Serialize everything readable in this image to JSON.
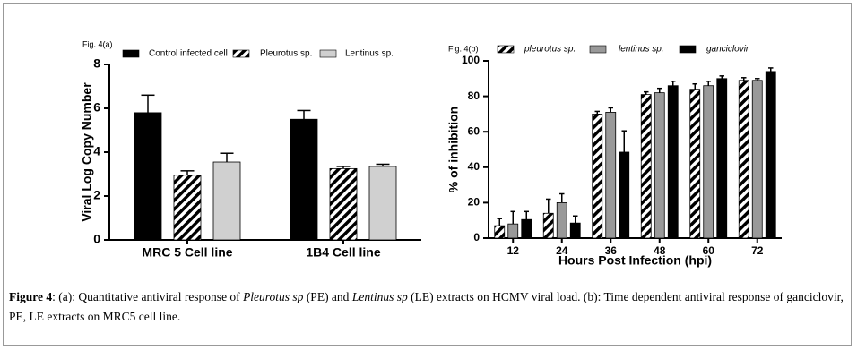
{
  "chart_data": [
    {
      "type": "bar",
      "title": "Fig. 4(a)",
      "ylabel": "Viral Log Copy Number",
      "categories": [
        "MRC 5 Cell line",
        "1B4 Cell line"
      ],
      "ylim": [
        0,
        8
      ],
      "yticks": [
        0,
        2,
        4,
        6,
        8
      ],
      "legend": "top",
      "legend_italic": false,
      "series": [
        {
          "name": "Control infected cell",
          "color": "#000000",
          "fill": "solid",
          "values": [
            5.8,
            5.5
          ],
          "errors": [
            0.8,
            0.4
          ]
        },
        {
          "name": "Pleurotus sp.",
          "color": "#000000",
          "fill": "hatch",
          "values": [
            2.95,
            3.25
          ],
          "errors": [
            0.2,
            0.1
          ]
        },
        {
          "name": "Lentinus sp.",
          "color": "#d0d0d0",
          "fill": "solid",
          "values": [
            3.55,
            3.35
          ],
          "errors": [
            0.4,
            0.1
          ]
        }
      ]
    },
    {
      "type": "bar",
      "title": "Fig. 4(b)",
      "ylabel": "% of inhibition",
      "xlabel": "Hours Post Infection (hpi)",
      "categories": [
        "12",
        "24",
        "36",
        "48",
        "60",
        "72"
      ],
      "ylim": [
        0,
        100
      ],
      "yticks": [
        0,
        20,
        40,
        60,
        80,
        100
      ],
      "legend": "top",
      "legend_italic": true,
      "series": [
        {
          "name": "pleurotus sp.",
          "color": "#000000",
          "fill": "hatch",
          "values": [
            7,
            14,
            70,
            81,
            84,
            89
          ],
          "errors": [
            4,
            8,
            1.5,
            1.5,
            3,
            1.5
          ]
        },
        {
          "name": "lentinus sp.",
          "color": "#999999",
          "fill": "solid",
          "values": [
            8,
            20,
            71,
            82,
            86,
            89
          ],
          "errors": [
            7,
            5,
            2.5,
            2.5,
            2.5,
            1
          ]
        },
        {
          "name": "ganciclovir",
          "color": "#000000",
          "fill": "solid",
          "values": [
            10.5,
            8.5,
            48.5,
            86,
            90,
            94
          ],
          "errors": [
            4.5,
            4,
            12,
            2.5,
            1.5,
            2
          ]
        }
      ]
    }
  ],
  "caption": [
    "Figure 4",
    ": (a): Quantitative antiviral response of ",
    "Pleurotus sp",
    " (PE) and ",
    "Lentinus sp",
    " (LE) extracts on HCMV viral load. (b): Time dependent antiviral response of ganciclovir, PE, LE extracts on MRC5 cell line."
  ]
}
